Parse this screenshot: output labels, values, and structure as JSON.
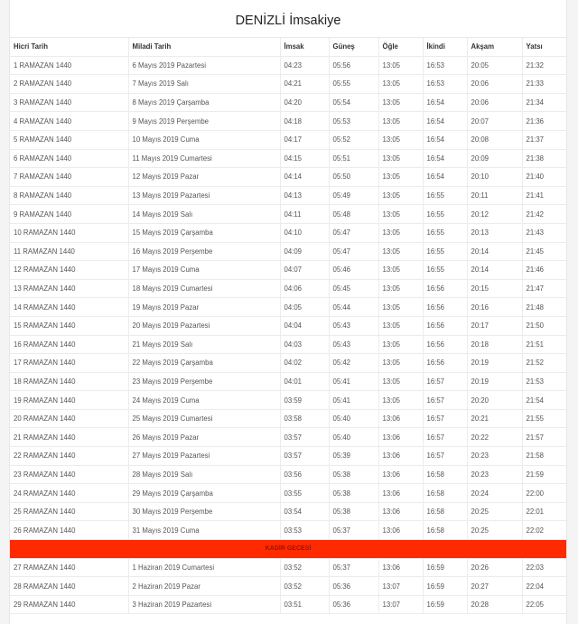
{
  "title": "DENİZLİ İmsakiye",
  "columns": [
    "Hicri Tarih",
    "Miladi Tarih",
    "İmsak",
    "Güneş",
    "Öğle",
    "İkindi",
    "Akşam",
    "Yatsı"
  ],
  "colors": {
    "special_row_bg": "#ff2a00",
    "special_row_text": "#8a1a0a"
  },
  "rows": [
    [
      "1 RAMAZAN 1440",
      "6 Mayıs 2019 Pazartesi",
      "04:23",
      "05:56",
      "13:05",
      "16:53",
      "20:05",
      "21:32"
    ],
    [
      "2 RAMAZAN 1440",
      "7 Mayıs 2019 Salı",
      "04:21",
      "05:55",
      "13:05",
      "16:53",
      "20:06",
      "21:33"
    ],
    [
      "3 RAMAZAN 1440",
      "8 Mayıs 2019 Çarşamba",
      "04:20",
      "05:54",
      "13:05",
      "16:54",
      "20:06",
      "21:34"
    ],
    [
      "4 RAMAZAN 1440",
      "9 Mayıs 2019 Perşembe",
      "04:18",
      "05:53",
      "13:05",
      "16:54",
      "20:07",
      "21:36"
    ],
    [
      "5 RAMAZAN 1440",
      "10 Mayıs 2019 Cuma",
      "04:17",
      "05:52",
      "13:05",
      "16:54",
      "20:08",
      "21:37"
    ],
    [
      "6 RAMAZAN 1440",
      "11 Mayıs 2019 Cumartesi",
      "04:15",
      "05:51",
      "13:05",
      "16:54",
      "20:09",
      "21:38"
    ],
    [
      "7 RAMAZAN 1440",
      "12 Mayıs 2019 Pazar",
      "04:14",
      "05:50",
      "13:05",
      "16:54",
      "20:10",
      "21:40"
    ],
    [
      "8 RAMAZAN 1440",
      "13 Mayıs 2019 Pazartesi",
      "04:13",
      "05:49",
      "13:05",
      "16:55",
      "20:11",
      "21:41"
    ],
    [
      "9 RAMAZAN 1440",
      "14 Mayıs 2019 Salı",
      "04:11",
      "05:48",
      "13:05",
      "16:55",
      "20:12",
      "21:42"
    ],
    [
      "10 RAMAZAN 1440",
      "15 Mayıs 2019 Çarşamba",
      "04:10",
      "05:47",
      "13:05",
      "16:55",
      "20:13",
      "21:43"
    ],
    [
      "11 RAMAZAN 1440",
      "16 Mayıs 2019 Perşembe",
      "04:09",
      "05:47",
      "13:05",
      "16:55",
      "20:14",
      "21:45"
    ],
    [
      "12 RAMAZAN 1440",
      "17 Mayıs 2019 Cuma",
      "04:07",
      "05:46",
      "13:05",
      "16:55",
      "20:14",
      "21:46"
    ],
    [
      "13 RAMAZAN 1440",
      "18 Mayıs 2019 Cumartesi",
      "04:06",
      "05:45",
      "13:05",
      "16:56",
      "20:15",
      "21:47"
    ],
    [
      "14 RAMAZAN 1440",
      "19 Mayıs 2019 Pazar",
      "04:05",
      "05:44",
      "13:05",
      "16:56",
      "20:16",
      "21:48"
    ],
    [
      "15 RAMAZAN 1440",
      "20 Mayıs 2019 Pazartesi",
      "04:04",
      "05:43",
      "13:05",
      "16:56",
      "20:17",
      "21:50"
    ],
    [
      "16 RAMAZAN 1440",
      "21 Mayıs 2019 Salı",
      "04:03",
      "05:43",
      "13:05",
      "16:56",
      "20:18",
      "21:51"
    ],
    [
      "17 RAMAZAN 1440",
      "22 Mayıs 2019 Çarşamba",
      "04:02",
      "05:42",
      "13:05",
      "16:56",
      "20:19",
      "21:52"
    ],
    [
      "18 RAMAZAN 1440",
      "23 Mayıs 2019 Perşembe",
      "04:01",
      "05:41",
      "13:05",
      "16:57",
      "20:19",
      "21:53"
    ],
    [
      "19 RAMAZAN 1440",
      "24 Mayıs 2019 Cuma",
      "03:59",
      "05:41",
      "13:05",
      "16:57",
      "20:20",
      "21:54"
    ],
    [
      "20 RAMAZAN 1440",
      "25 Mayıs 2019 Cumartesi",
      "03:58",
      "05:40",
      "13:06",
      "16:57",
      "20:21",
      "21:55"
    ],
    [
      "21 RAMAZAN 1440",
      "26 Mayıs 2019 Pazar",
      "03:57",
      "05:40",
      "13:06",
      "16:57",
      "20:22",
      "21:57"
    ],
    [
      "22 RAMAZAN 1440",
      "27 Mayıs 2019 Pazartesi",
      "03:57",
      "05:39",
      "13:06",
      "16:57",
      "20:23",
      "21:58"
    ],
    [
      "23 RAMAZAN 1440",
      "28 Mayıs 2019 Salı",
      "03:56",
      "05:38",
      "13:06",
      "16:58",
      "20:23",
      "21:59"
    ],
    [
      "24 RAMAZAN 1440",
      "29 Mayıs 2019 Çarşamba",
      "03:55",
      "05:38",
      "13:06",
      "16:58",
      "20:24",
      "22:00"
    ],
    [
      "25 RAMAZAN 1440",
      "30 Mayıs 2019 Perşembe",
      "03:54",
      "05:38",
      "13:06",
      "16:58",
      "20:25",
      "22:01"
    ],
    [
      "26 RAMAZAN 1440",
      "31 Mayıs 2019 Cuma",
      "03:53",
      "05:37",
      "13:06",
      "16:58",
      "20:25",
      "22:02"
    ],
    {
      "special": "KADİR GECESİ"
    },
    [
      "27 RAMAZAN 1440",
      "1 Haziran 2019 Cumartesi",
      "03:52",
      "05:37",
      "13:06",
      "16:59",
      "20:26",
      "22:03"
    ],
    [
      "28 RAMAZAN 1440",
      "2 Haziran 2019 Pazar",
      "03:52",
      "05:36",
      "13:07",
      "16:59",
      "20:27",
      "22:04"
    ],
    [
      "29 RAMAZAN 1440",
      "3 Haziran 2019 Pazartesi",
      "03:51",
      "05:36",
      "13:07",
      "16:59",
      "20:28",
      "22:05"
    ]
  ]
}
